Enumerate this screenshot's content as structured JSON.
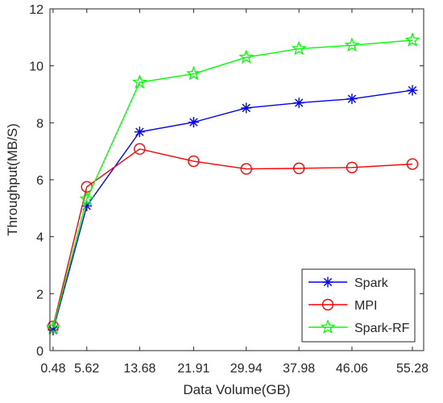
{
  "chart_data": {
    "type": "line",
    "title": "",
    "xlabel": "Data Volume(GB)",
    "ylabel": "Throughput(MB/S)",
    "x": [
      0.48,
      5.62,
      13.68,
      21.91,
      29.94,
      37.98,
      46.06,
      55.28
    ],
    "x_tick_labels": [
      "0.48",
      "5.62",
      "13.68",
      "21.91",
      "29.94",
      "37.98",
      "46.06",
      "55.28"
    ],
    "xlim": [
      0,
      57
    ],
    "ylim": [
      0,
      12
    ],
    "y_ticks": [
      0,
      2,
      4,
      6,
      8,
      10,
      12
    ],
    "y_tick_labels": [
      "0",
      "2",
      "4",
      "6",
      "8",
      "10",
      "12"
    ],
    "grid": false,
    "legend_position": "bottom-right",
    "series": [
      {
        "name": "Spark",
        "color": "#0000ff",
        "marker": "asterisk",
        "values": [
          0.72,
          5.08,
          7.68,
          8.02,
          8.52,
          8.7,
          8.84,
          9.14
        ]
      },
      {
        "name": "MPI",
        "color": "#ff0000",
        "marker": "circle",
        "values": [
          0.85,
          5.75,
          7.08,
          6.65,
          6.38,
          6.4,
          6.43,
          6.55
        ]
      },
      {
        "name": "Spark-RF",
        "color": "#00ff00",
        "marker": "pentagram",
        "values": [
          0.8,
          5.32,
          9.42,
          9.72,
          10.3,
          10.6,
          10.72,
          10.9
        ]
      }
    ]
  }
}
